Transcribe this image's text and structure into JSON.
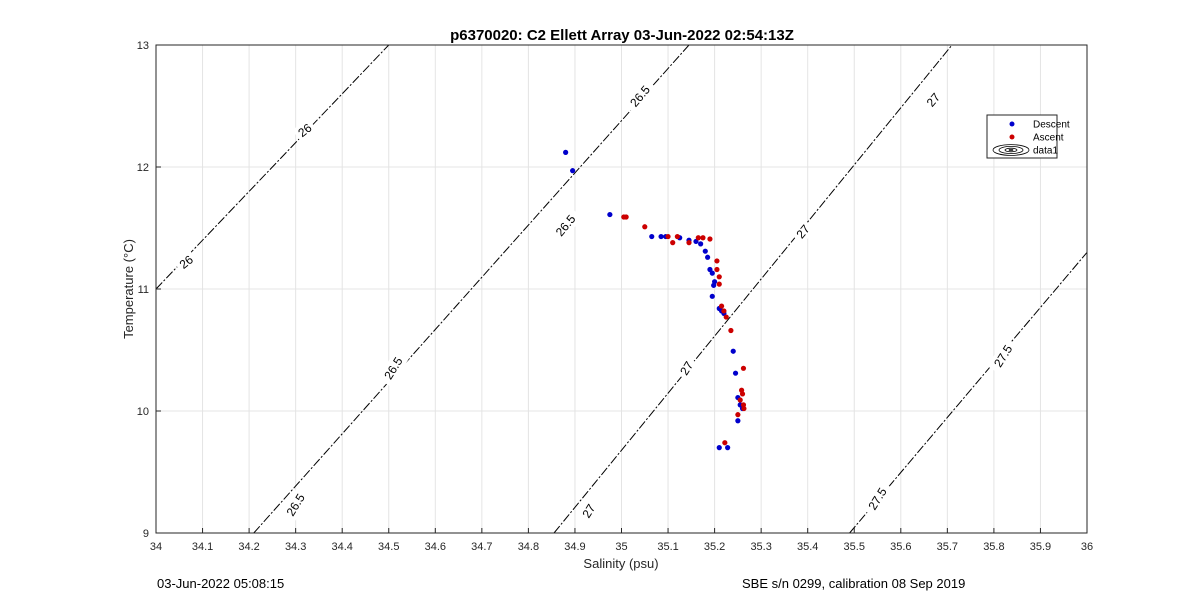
{
  "footer": {
    "timestamp": "03-Jun-2022 05:08:15",
    "serial": "SBE s/n 0299, calibration 08 Sep 2019"
  },
  "chart_data": {
    "type": "scatter",
    "title": "p6370020: C2 Ellett Array 03-Jun-2022 02:54:13Z",
    "xlabel": "Salinity (psu)",
    "ylabel": "Temperature (°C)",
    "xlim": [
      34,
      36
    ],
    "ylim": [
      9,
      13
    ],
    "grid": true,
    "legend_position": "top-right",
    "xticks": [
      "34",
      "34.1",
      "34.2",
      "34.3",
      "34.4",
      "34.5",
      "34.6",
      "34.7",
      "34.8",
      "34.9",
      "35",
      "35.1",
      "35.2",
      "35.3",
      "35.4",
      "35.5",
      "35.6",
      "35.7",
      "35.8",
      "35.9",
      "36"
    ],
    "yticks": [
      "9",
      "10",
      "11",
      "12",
      "13"
    ],
    "isopycnals": [
      {
        "label": "26",
        "points": [
          [
            34.0,
            11.0
          ],
          [
            34.5,
            13.0
          ]
        ]
      },
      {
        "label": "26.5",
        "points": [
          [
            34.21,
            9.0
          ],
          [
            35.145,
            13.0
          ]
        ]
      },
      {
        "label": "27",
        "points": [
          [
            34.855,
            9.0
          ],
          [
            35.71,
            13.0
          ]
        ]
      },
      {
        "label": "27.5",
        "points": [
          [
            35.49,
            9.0
          ],
          [
            36.0,
            11.3
          ]
        ]
      }
    ],
    "isopycnal_labels": [
      {
        "text": "26",
        "x": 34.065,
        "y": 11.22,
        "angle": -38
      },
      {
        "text": "26",
        "x": 34.32,
        "y": 12.3,
        "angle": -38
      },
      {
        "text": "26.5",
        "x": 34.3,
        "y": 9.23,
        "angle": -58
      },
      {
        "text": "26.5",
        "x": 34.51,
        "y": 10.35,
        "angle": -58
      },
      {
        "text": "26.5",
        "x": 34.88,
        "y": 11.52,
        "angle": -50
      },
      {
        "text": "26.5",
        "x": 35.04,
        "y": 12.58,
        "angle": -50
      },
      {
        "text": "27",
        "x": 34.93,
        "y": 9.18,
        "angle": -58
      },
      {
        "text": "27",
        "x": 35.14,
        "y": 10.35,
        "angle": -58
      },
      {
        "text": "27",
        "x": 35.39,
        "y": 11.47,
        "angle": -50
      },
      {
        "text": "27",
        "x": 35.67,
        "y": 12.55,
        "angle": -50
      },
      {
        "text": "27.5",
        "x": 35.55,
        "y": 9.28,
        "angle": -58
      },
      {
        "text": "27.5",
        "x": 35.82,
        "y": 10.45,
        "angle": -58
      }
    ],
    "series": [
      {
        "name": "Descent",
        "color": "#0000cc",
        "points": [
          [
            34.88,
            12.12
          ],
          [
            34.895,
            11.97
          ],
          [
            34.975,
            11.61
          ],
          [
            35.065,
            11.43
          ],
          [
            35.085,
            11.43
          ],
          [
            35.095,
            11.43
          ],
          [
            35.125,
            11.42
          ],
          [
            35.145,
            11.4
          ],
          [
            35.16,
            11.39
          ],
          [
            35.17,
            11.37
          ],
          [
            35.18,
            11.31
          ],
          [
            35.185,
            11.26
          ],
          [
            35.19,
            11.16
          ],
          [
            35.195,
            11.13
          ],
          [
            35.2,
            11.06
          ],
          [
            35.198,
            11.03
          ],
          [
            35.195,
            10.94
          ],
          [
            35.21,
            10.84
          ],
          [
            35.215,
            10.82
          ],
          [
            35.22,
            10.8
          ],
          [
            35.24,
            10.49
          ],
          [
            35.245,
            10.31
          ],
          [
            35.25,
            10.11
          ],
          [
            35.255,
            10.05
          ],
          [
            35.26,
            10.02
          ],
          [
            35.25,
            9.92
          ],
          [
            35.21,
            9.7
          ],
          [
            35.228,
            9.7
          ]
        ]
      },
      {
        "name": "Ascent",
        "color": "#cc0000",
        "points": [
          [
            35.005,
            11.59
          ],
          [
            35.01,
            11.59
          ],
          [
            35.05,
            11.51
          ],
          [
            35.1,
            11.43
          ],
          [
            35.11,
            11.38
          ],
          [
            35.12,
            11.43
          ],
          [
            35.145,
            11.38
          ],
          [
            35.165,
            11.42
          ],
          [
            35.175,
            11.42
          ],
          [
            35.19,
            11.41
          ],
          [
            35.205,
            11.23
          ],
          [
            35.205,
            11.16
          ],
          [
            35.21,
            11.1
          ],
          [
            35.21,
            11.04
          ],
          [
            35.215,
            10.86
          ],
          [
            35.22,
            10.82
          ],
          [
            35.225,
            10.77
          ],
          [
            35.235,
            10.66
          ],
          [
            35.262,
            10.35
          ],
          [
            35.258,
            10.17
          ],
          [
            35.26,
            10.14
          ],
          [
            35.255,
            10.09
          ],
          [
            35.262,
            10.05
          ],
          [
            35.263,
            10.02
          ],
          [
            35.25,
            9.97
          ],
          [
            35.222,
            9.74
          ]
        ]
      }
    ],
    "legend": [
      {
        "label": "Descent",
        "marker": "dot",
        "color": "#0000cc"
      },
      {
        "label": "Ascent",
        "marker": "dot",
        "color": "#cc0000"
      },
      {
        "label": "data1",
        "marker": "contour",
        "color": "#000000"
      }
    ]
  }
}
